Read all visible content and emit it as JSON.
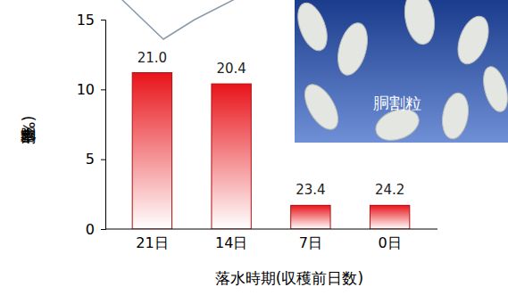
{
  "chart_data": {
    "type": "bar",
    "categories": [
      "21日",
      "14日",
      "7日",
      "0日"
    ],
    "values": [
      11.2,
      10.4,
      1.7,
      1.7
    ],
    "color": "#e8141a",
    "ylim": [
      0,
      15
    ],
    "yticks": [
      0,
      5,
      10,
      15
    ],
    "grid": false,
    "data_labels": false,
    "y_label": "全胴割率(%)",
    "x_label": "落水時期(収穫前日数)",
    "annotations": [
      "21.0",
      "20.4",
      "23.4",
      "24.2"
    ],
    "inset_label": "胴割粒"
  }
}
